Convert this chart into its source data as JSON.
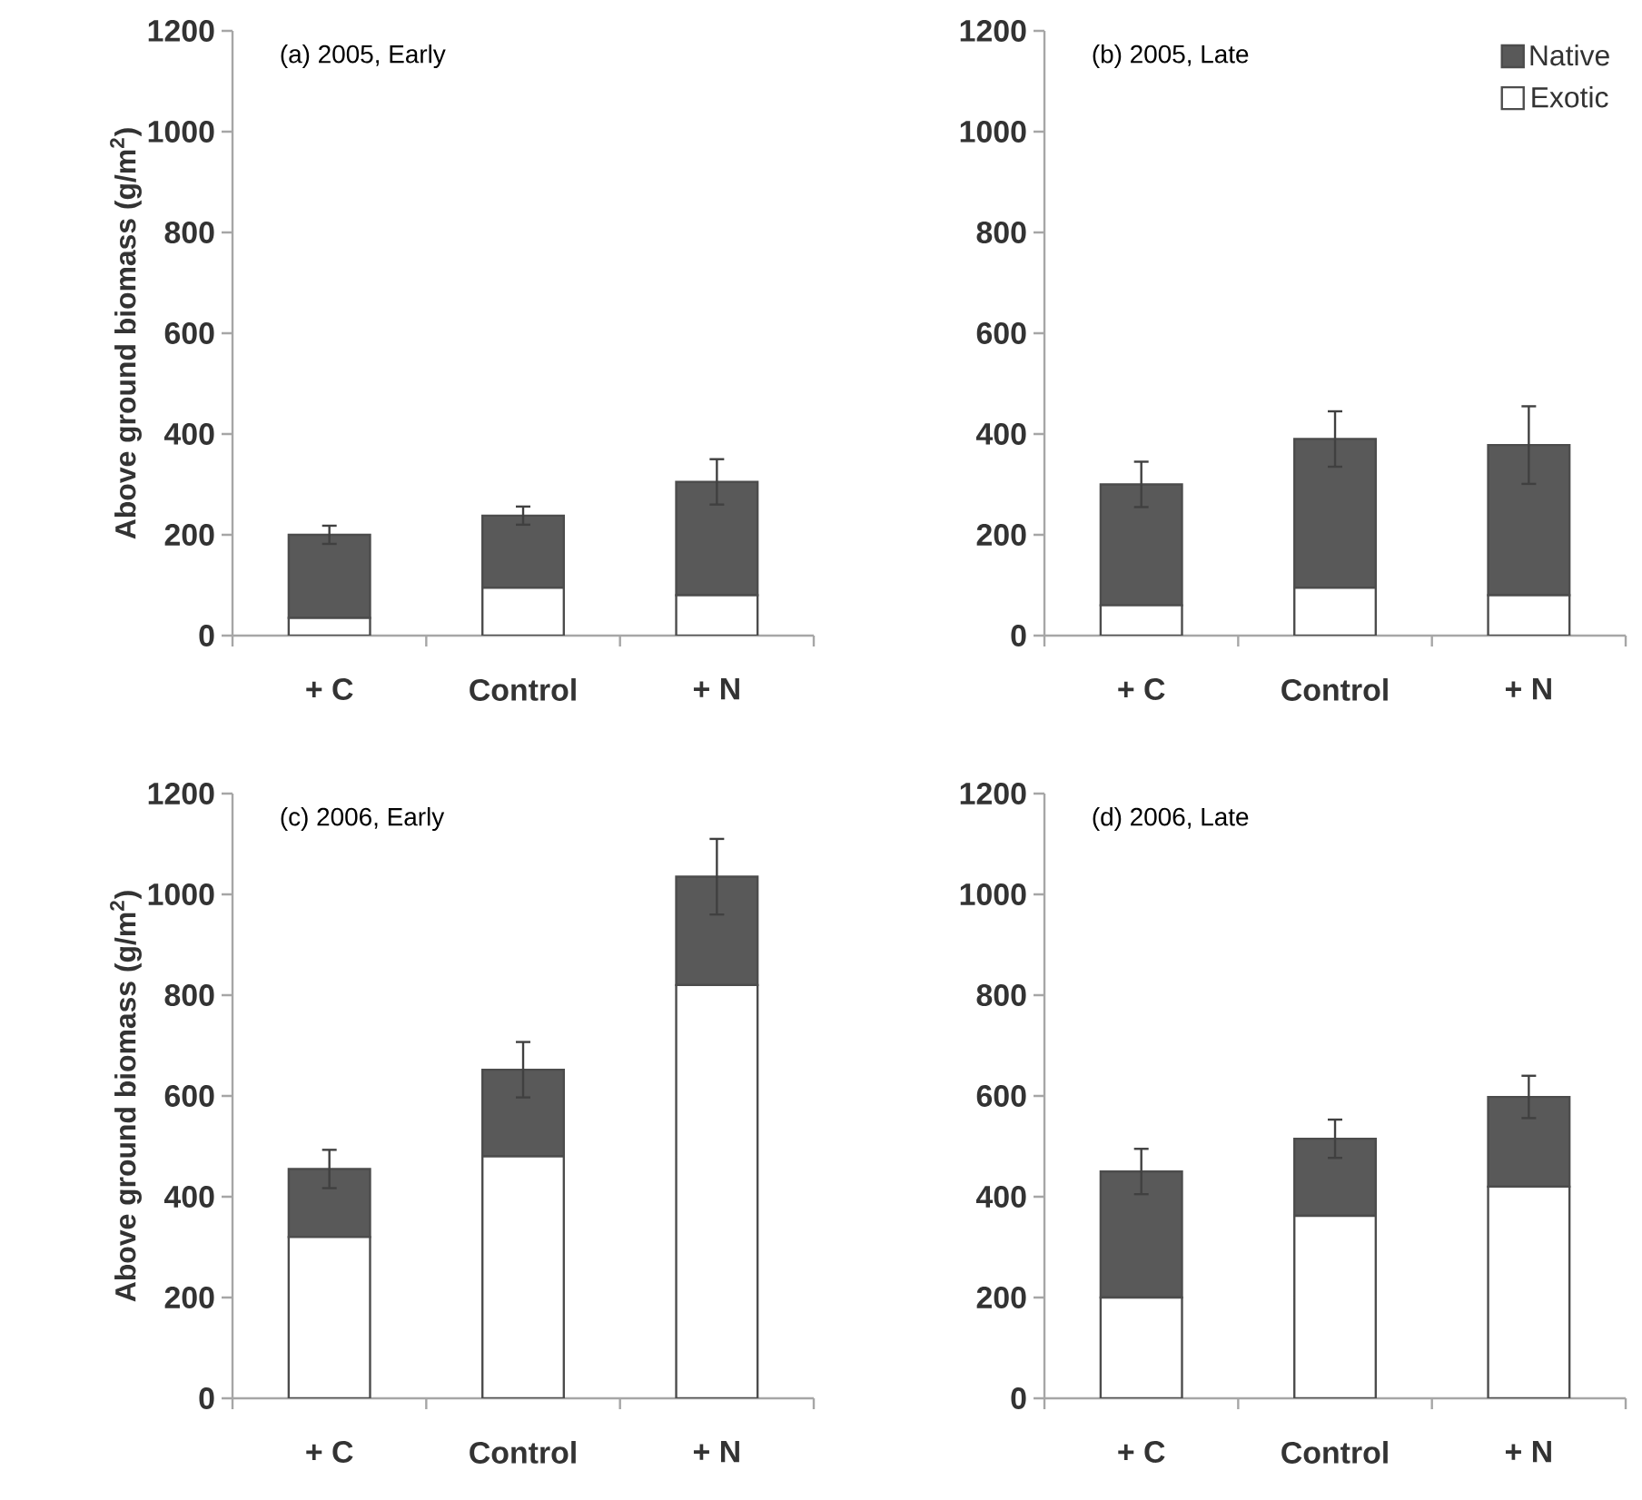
{
  "chart_data": [
    {
      "type": "bar",
      "stacked": true,
      "title": "(a) 2005, Early",
      "ylabel": "Above ground biomass (g/m$^{2}$)",
      "categories": [
        "+ C",
        "Control",
        "+ N"
      ],
      "ylim": [
        0,
        1200
      ],
      "yticks": [
        0,
        200,
        400,
        600,
        800,
        1000,
        1200
      ],
      "series": [
        {
          "color": "#ffffff",
          "values": [
            35,
            95,
            80
          ]
        },
        {
          "color": "#595959",
          "values": [
            165,
            143,
            225
          ],
          "errors": [
            18,
            18,
            45
          ]
        }
      ]
    },
    {
      "type": "bar",
      "stacked": true,
      "title": "(b) 2005, Late",
      "categories": [
        "+ C",
        "Control",
        "+ N"
      ],
      "ylim": [
        0,
        1200
      ],
      "yticks": [
        0,
        200,
        400,
        600,
        800,
        1000,
        1200
      ],
      "legend": "top right",
      "series": [
        {
          "name": "Exotic",
          "color": "#ffffff",
          "values": [
            60,
            95,
            80
          ]
        },
        {
          "name": "Native",
          "color": "#595959",
          "values": [
            240,
            295,
            298
          ],
          "errors": [
            45,
            55,
            77
          ]
        }
      ]
    },
    {
      "type": "bar",
      "stacked": true,
      "title": "(c) 2006, Early",
      "ylabel": "Above ground biomass (g/m$^{2}$)",
      "categories": [
        "+ C",
        "Control",
        "+ N"
      ],
      "ylim": [
        0,
        1200
      ],
      "yticks": [
        0,
        200,
        400,
        600,
        800,
        1000,
        1200
      ],
      "series": [
        {
          "color": "#ffffff",
          "values": [
            320,
            480,
            820
          ]
        },
        {
          "color": "#595959",
          "values": [
            135,
            172,
            215
          ],
          "errors": [
            38,
            55,
            75
          ]
        }
      ]
    },
    {
      "type": "bar",
      "stacked": true,
      "title": "(d) 2006, Late",
      "categories": [
        "+ C",
        "Control",
        "+ N"
      ],
      "ylim": [
        0,
        1200
      ],
      "yticks": [
        0,
        200,
        400,
        600,
        800,
        1000,
        1200
      ],
      "series": [
        {
          "color": "#ffffff",
          "values": [
            200,
            362,
            420
          ]
        },
        {
          "color": "#595959",
          "values": [
            250,
            153,
            178
          ],
          "errors": [
            45,
            38,
            42
          ]
        }
      ]
    }
  ]
}
